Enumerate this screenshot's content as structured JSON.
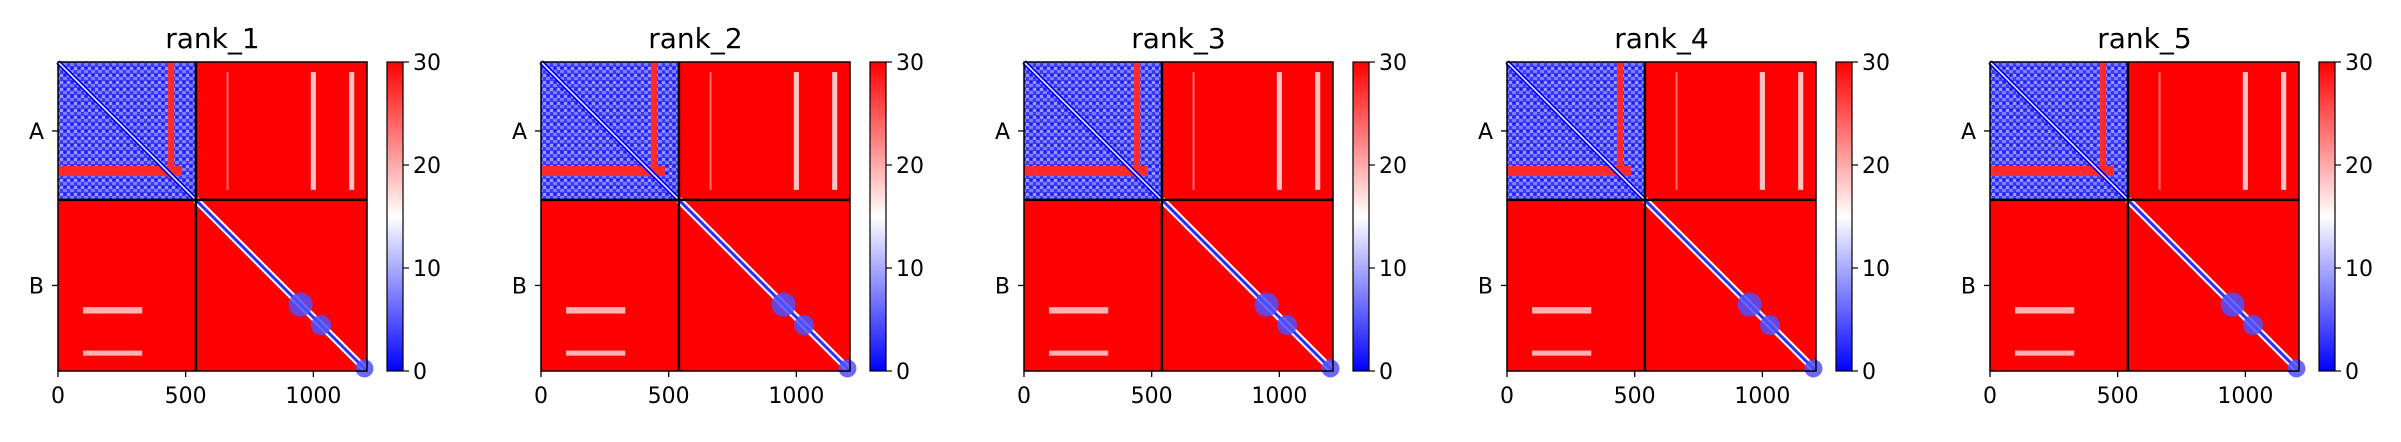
{
  "chart_data": [
    {
      "type": "heatmap",
      "title": "rank_1",
      "x_range": [
        0,
        1210
      ],
      "x_ticks": [
        0,
        500,
        1000
      ],
      "chain_labels": [
        "A",
        "B"
      ],
      "chain_boundary": 540,
      "colorbar": {
        "min": 0,
        "max": 30,
        "ticks": [
          0,
          10,
          20,
          30
        ],
        "colors": [
          "#0000ff",
          "#ffffff",
          "#ff0000"
        ]
      }
    },
    {
      "type": "heatmap",
      "title": "rank_2",
      "x_range": [
        0,
        1210
      ],
      "x_ticks": [
        0,
        500,
        1000
      ],
      "chain_labels": [
        "A",
        "B"
      ],
      "chain_boundary": 540,
      "colorbar": {
        "min": 0,
        "max": 30,
        "ticks": [
          0,
          10,
          20,
          30
        ],
        "colors": [
          "#0000ff",
          "#ffffff",
          "#ff0000"
        ]
      }
    },
    {
      "type": "heatmap",
      "title": "rank_3",
      "x_range": [
        0,
        1210
      ],
      "x_ticks": [
        0,
        500,
        1000
      ],
      "chain_labels": [
        "A",
        "B"
      ],
      "chain_boundary": 540,
      "colorbar": {
        "min": 0,
        "max": 30,
        "ticks": [
          0,
          10,
          20,
          30
        ],
        "colors": [
          "#0000ff",
          "#ffffff",
          "#ff0000"
        ]
      }
    },
    {
      "type": "heatmap",
      "title": "rank_4",
      "x_range": [
        0,
        1210
      ],
      "x_ticks": [
        0,
        500,
        1000
      ],
      "chain_labels": [
        "A",
        "B"
      ],
      "chain_boundary": 540,
      "colorbar": {
        "min": 0,
        "max": 30,
        "ticks": [
          0,
          10,
          20,
          30
        ],
        "colors": [
          "#0000ff",
          "#ffffff",
          "#ff0000"
        ]
      }
    },
    {
      "type": "heatmap",
      "title": "rank_5",
      "x_range": [
        0,
        1210
      ],
      "x_ticks": [
        0,
        500,
        1000
      ],
      "chain_labels": [
        "A",
        "B"
      ],
      "chain_boundary": 540,
      "colorbar": {
        "min": 0,
        "max": 30,
        "ticks": [
          0,
          10,
          20,
          30
        ],
        "colors": [
          "#0000ff",
          "#ffffff",
          "#ff0000"
        ]
      }
    }
  ]
}
